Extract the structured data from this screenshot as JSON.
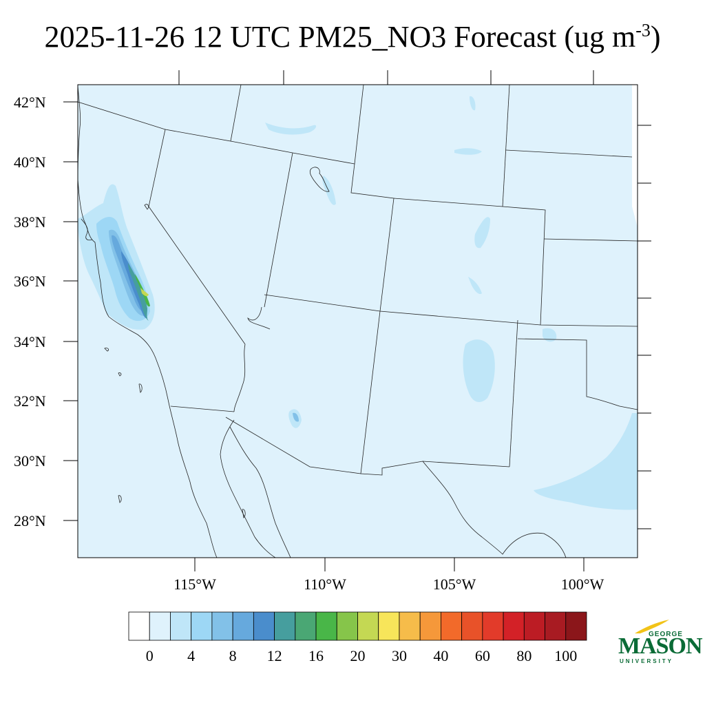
{
  "title": {
    "main": "2025-11-26 12 UTC PM25_NO3 Forecast (ug m",
    "superscript": "-3",
    "close": ")"
  },
  "map": {
    "lat_labels": [
      "42°N",
      "40°N",
      "38°N",
      "36°N",
      "34°N",
      "32°N",
      "30°N",
      "28°N"
    ],
    "lon_labels": [
      "115°W",
      "110°W",
      "105°W",
      "100°W"
    ],
    "background_color": "#dff2fc"
  },
  "colorbar": {
    "labels": [
      "0",
      "4",
      "8",
      "12",
      "16",
      "20",
      "30",
      "40",
      "60",
      "80",
      "100"
    ],
    "colors": [
      "#ffffff",
      "#dff2fc",
      "#bfe6f8",
      "#9dd7f5",
      "#82c1e8",
      "#66a9dd",
      "#4a8dcc",
      "#469e9e",
      "#4aa774",
      "#49b648",
      "#86c54a",
      "#c4d853",
      "#f7e55a",
      "#f6bc4a",
      "#f5983a",
      "#f26a2a",
      "#e85229",
      "#e23b2a",
      "#d32127",
      "#bc1c24",
      "#a81b22",
      "#8b161a"
    ]
  },
  "logo": {
    "line1": "GEORGE",
    "line2": "MASON",
    "line3": "UNIVERSITY",
    "color": "#0a6b36",
    "accent": "#f2c318"
  }
}
